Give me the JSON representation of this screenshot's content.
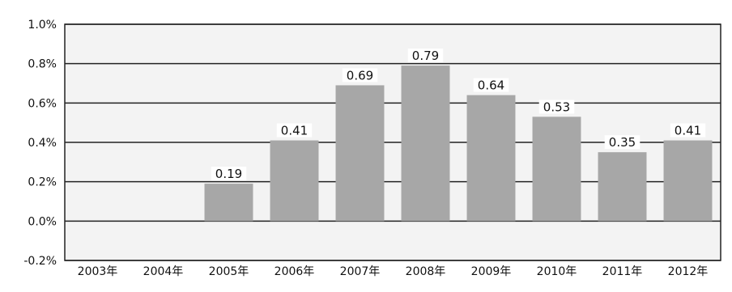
{
  "chart_data": {
    "type": "bar",
    "categories": [
      "2003年",
      "2004年",
      "2005年",
      "2006年",
      "2007年",
      "2008年",
      "2009年",
      "2010年",
      "2011年",
      "2012年"
    ],
    "values": [
      null,
      null,
      0.19,
      0.41,
      0.69,
      0.79,
      0.64,
      0.53,
      0.35,
      0.41
    ],
    "data_labels": [
      "",
      "",
      "0.19",
      "0.41",
      "0.69",
      "0.79",
      "0.64",
      "0.53",
      "0.35",
      "0.41"
    ],
    "yticks": [
      1.0,
      0.8,
      0.6,
      0.4,
      0.2,
      0.0,
      -0.2
    ],
    "ytick_labels": [
      "1.0%",
      "0.8%",
      "0.6%",
      "0.4%",
      "0.2%",
      "0.0%",
      "-0.2%"
    ],
    "ylim": [
      -0.2,
      1.0
    ],
    "grid": true,
    "legend": "none",
    "colors": {
      "bar": "#a7a7a7",
      "plot_background": "#f3f3f3",
      "gridline": "#222222",
      "text": "#111111"
    }
  }
}
